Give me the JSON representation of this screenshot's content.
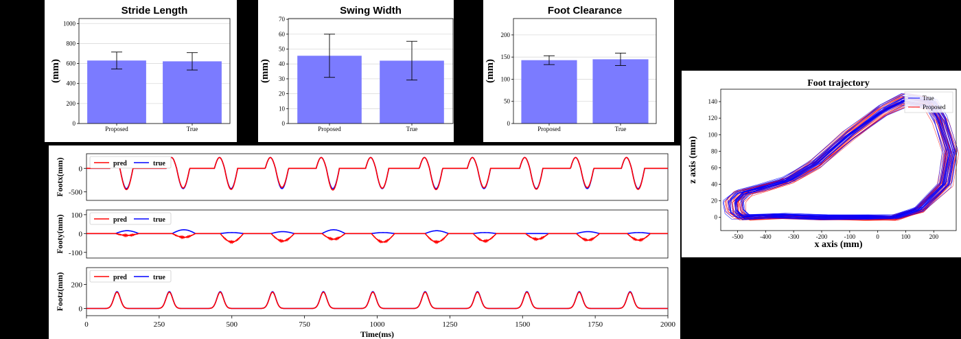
{
  "chart_data": [
    {
      "type": "bar",
      "title": "Stride Length",
      "xlabel": "",
      "ylabel": "(mm)",
      "categories": [
        "Proposed",
        "True"
      ],
      "values": [
        630,
        622
      ],
      "errors": [
        85,
        87
      ],
      "ylim": [
        0,
        1050
      ],
      "yticks": [
        0,
        200,
        400,
        600,
        800,
        1000
      ],
      "grid": true,
      "color": "#7b7bff"
    },
    {
      "type": "bar",
      "title": "Swing Width",
      "xlabel": "",
      "ylabel": "(mm)",
      "categories": [
        "Proposed",
        "True"
      ],
      "values": [
        45.5,
        42.2
      ],
      "errors": [
        14.5,
        13.0
      ],
      "ylim": [
        0,
        70.5
      ],
      "yticks": [
        0,
        10,
        20,
        30,
        40,
        50,
        60,
        70
      ],
      "grid": true,
      "color": "#7b7bff"
    },
    {
      "type": "bar",
      "title": "Foot Clearance",
      "xlabel": "",
      "ylabel": "(mm)",
      "categories": [
        "Proposed",
        "True"
      ],
      "values": [
        143,
        145
      ],
      "errors": [
        10,
        14
      ],
      "ylim": [
        0,
        237
      ],
      "yticks": [
        0,
        50,
        100,
        150,
        200
      ],
      "grid": true,
      "color": "#7b7bff"
    },
    {
      "type": "line",
      "ylabel": "Footx(mm)",
      "ylim": [
        -680,
        310
      ],
      "yticks": [
        0,
        -500
      ],
      "legend": [
        "pred",
        "true"
      ],
      "legend_position": "top-left",
      "shape": "dip",
      "amplitude": -430,
      "peak_pre": 230,
      "peak_times_ms": [
        125,
        320,
        485,
        660,
        835,
        1005,
        1190,
        1355,
        1535,
        1710,
        1885
      ],
      "pred_offsets": [
        0.05,
        -0.03,
        0.04,
        -0.06,
        0.07,
        -0.02,
        0.05,
        -0.04,
        0.03,
        -0.05,
        0.04
      ]
    },
    {
      "type": "line",
      "ylabel": "Footy(mm)",
      "ylim": [
        -130,
        125
      ],
      "yticks": [
        100,
        0,
        -100
      ],
      "legend": [
        "pred",
        "true"
      ],
      "legend_position": "top-left",
      "shape": "wobble",
      "peak_times_ms": [
        125,
        320,
        485,
        660,
        835,
        1005,
        1190,
        1355,
        1535,
        1710,
        1885
      ],
      "true_levels": [
        15,
        20,
        5,
        10,
        20,
        5,
        15,
        5,
        0,
        10,
        5
      ],
      "pred_levels": [
        -10,
        -20,
        -45,
        -40,
        -30,
        -45,
        -45,
        -40,
        -30,
        -35,
        -35
      ]
    },
    {
      "type": "line",
      "xlabel": "Time(ms)",
      "ylabel": "Footz(mm)",
      "xlim": [
        0,
        2000
      ],
      "xticks": [
        0,
        250,
        500,
        750,
        1000,
        1250,
        1500,
        1750,
        2000
      ],
      "ylim": [
        -60,
        340
      ],
      "yticks": [
        0,
        200
      ],
      "legend": [
        "pred",
        "true"
      ],
      "legend_position": "top-left",
      "shape": "peak",
      "amplitude": 140,
      "peak_times_ms": [
        105,
        285,
        460,
        640,
        815,
        985,
        1165,
        1345,
        1515,
        1695,
        1870
      ]
    },
    {
      "type": "line",
      "title": "Foot trajectory",
      "xlabel": "x axis (mm)",
      "ylabel": "z axis (mm)",
      "xlim": [
        -560,
        280
      ],
      "ylim": [
        -16,
        155
      ],
      "xticks": [
        -500,
        -400,
        -300,
        -200,
        -100,
        0,
        100,
        200
      ],
      "yticks": [
        0,
        20,
        40,
        60,
        80,
        100,
        120,
        140
      ],
      "legend": [
        "True",
        "Proposed"
      ],
      "legend_position": "top-right",
      "loop": [
        [
          -480,
          0
        ],
        [
          -350,
          2
        ],
        [
          -200,
          0
        ],
        [
          -50,
          0
        ],
        [
          60,
          0
        ],
        [
          150,
          10
        ],
        [
          240,
          40
        ],
        [
          260,
          80
        ],
        [
          225,
          118
        ],
        [
          190,
          138
        ],
        [
          100,
          143
        ],
        [
          20,
          130
        ],
        [
          -100,
          100
        ],
        [
          -220,
          65
        ],
        [
          -320,
          45
        ],
        [
          -410,
          36
        ],
        [
          -480,
          30
        ],
        [
          -510,
          20
        ],
        [
          -505,
          7
        ]
      ]
    }
  ],
  "colors": {
    "bar": "#7b7bff",
    "pred": "#ff0000",
    "true": "#0000ff"
  }
}
